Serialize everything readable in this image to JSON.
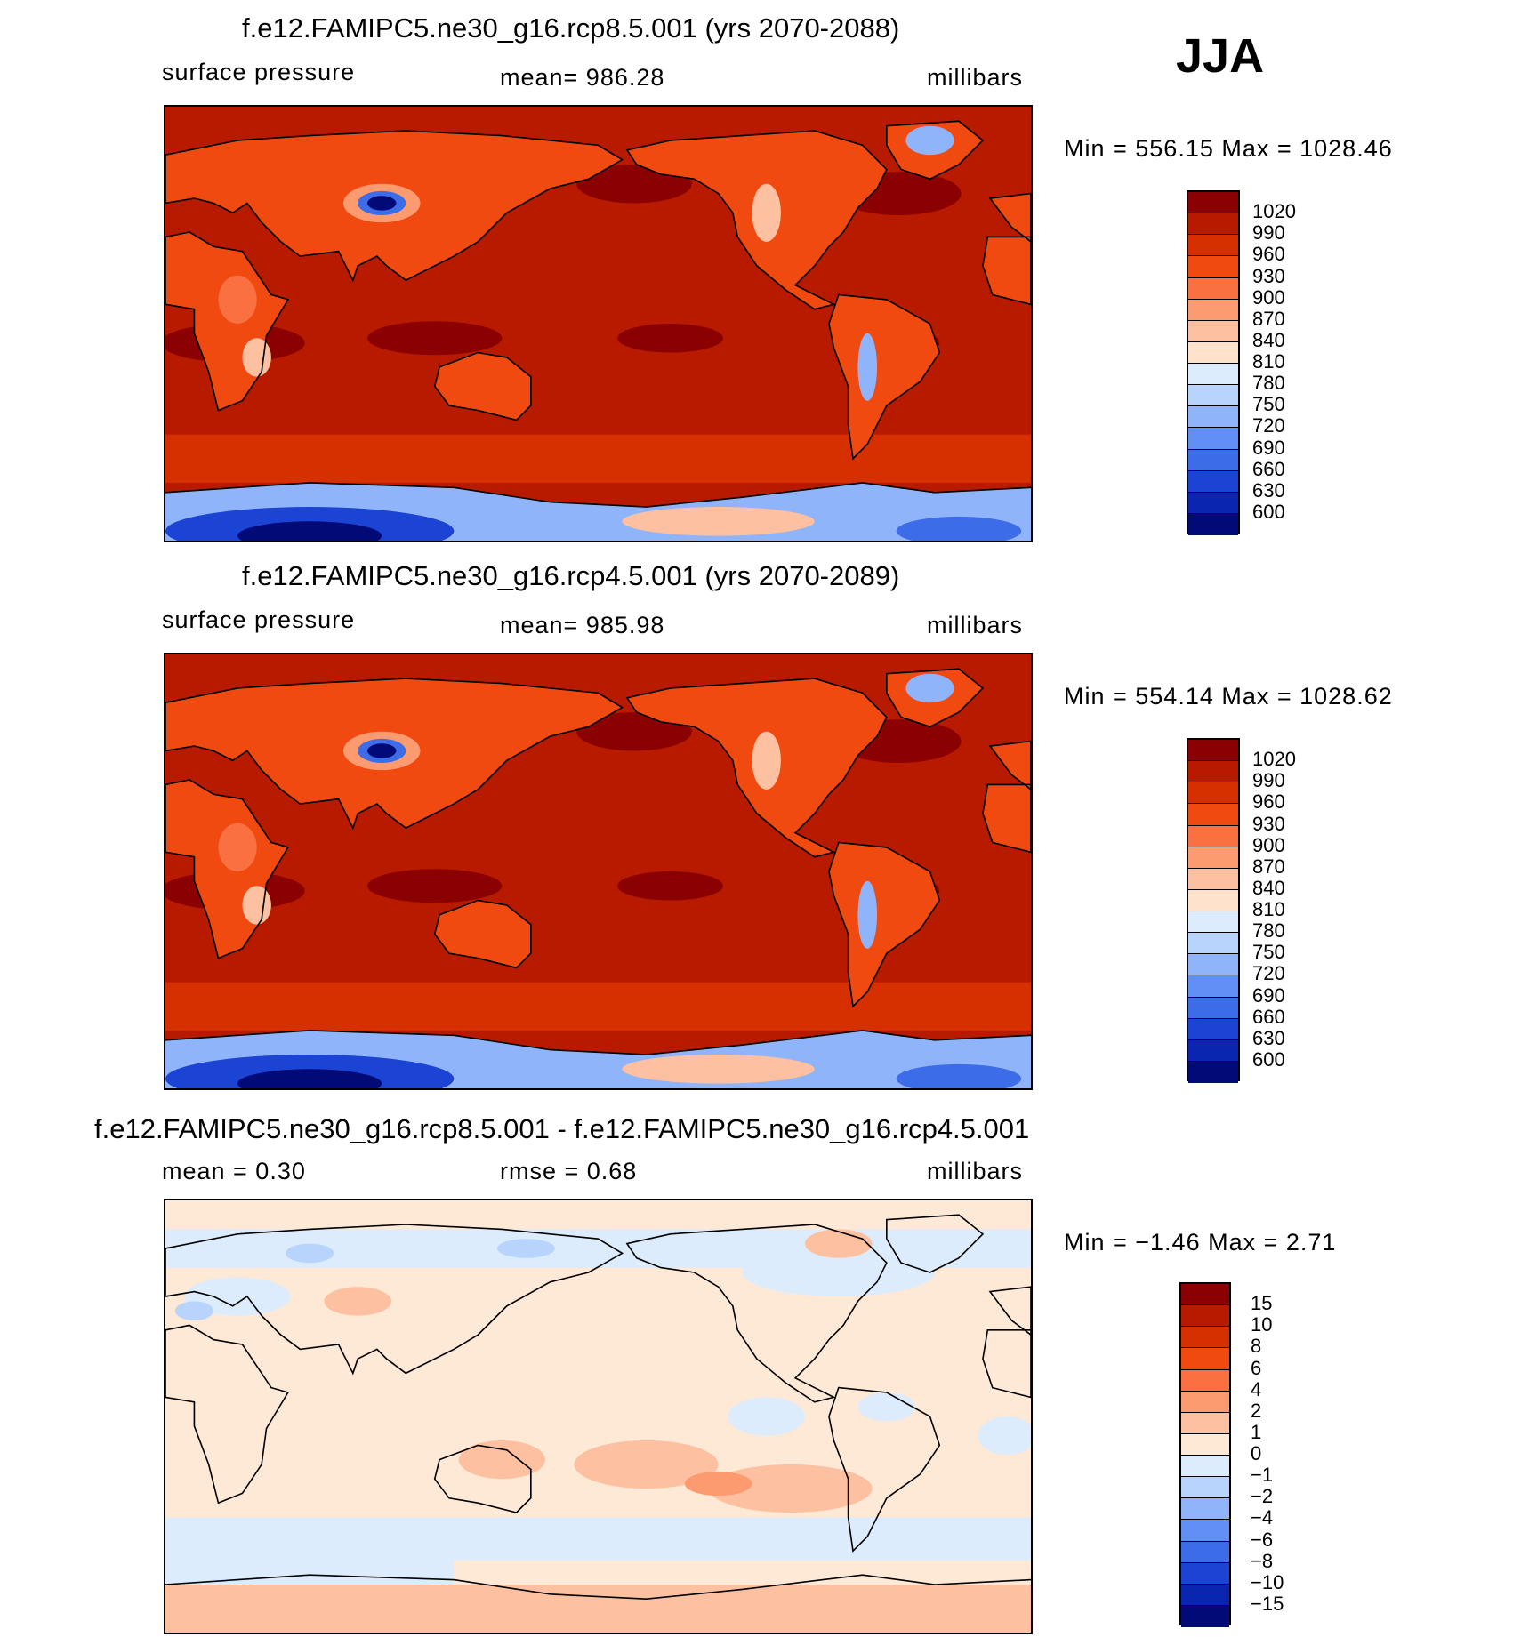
{
  "season": "JJA",
  "panels": [
    {
      "title": "f.e12.FAMIPC5.ne30_g16.rcp8.5.001 (yrs 2070-2088)",
      "left": "surface pressure",
      "center": "mean=  986.28",
      "right": "millibars",
      "minmax": "Min  =  556.15  Max  =  1028.46",
      "levels": [
        "1020",
        "990",
        "960",
        "930",
        "900",
        "870",
        "840",
        "810",
        "780",
        "750",
        "720",
        "690",
        "660",
        "630",
        "600"
      ],
      "colors": [
        "#8b0000",
        "#b81a00",
        "#d63000",
        "#f04a10",
        "#fa7040",
        "#fc9a70",
        "#fdc0a0",
        "#fee2cc",
        "#dcecfc",
        "#b8d4fc",
        "#90b4fa",
        "#6090f4",
        "#3c6ce8",
        "#1c44d4",
        "#0a26b0",
        "#020a78"
      ],
      "map_type": "full"
    },
    {
      "title": "f.e12.FAMIPC5.ne30_g16.rcp4.5.001 (yrs 2070-2089)",
      "left": "surface pressure",
      "center": "mean=  985.98",
      "right": "millibars",
      "minmax": "Min  =  554.14  Max  =  1028.62",
      "levels": [
        "1020",
        "990",
        "960",
        "930",
        "900",
        "870",
        "840",
        "810",
        "780",
        "750",
        "720",
        "690",
        "660",
        "630",
        "600"
      ],
      "colors": [
        "#8b0000",
        "#b81a00",
        "#d63000",
        "#f04a10",
        "#fa7040",
        "#fc9a70",
        "#fdc0a0",
        "#fee2cc",
        "#dcecfc",
        "#b8d4fc",
        "#90b4fa",
        "#6090f4",
        "#3c6ce8",
        "#1c44d4",
        "#0a26b0",
        "#020a78"
      ],
      "map_type": "full"
    },
    {
      "title": "f.e12.FAMIPC5.ne30_g16.rcp8.5.001 - f.e12.FAMIPC5.ne30_g16.rcp4.5.001",
      "left": "mean =     0.30",
      "center": "rmse =     0.68",
      "right": "millibars",
      "minmax": "Min  =    −1.46  Max  =     2.71",
      "levels": [
        "15",
        "10",
        "8",
        "6",
        "4",
        "2",
        "1",
        "0",
        "−1",
        "−2",
        "−4",
        "−6",
        "−8",
        "−10",
        "−15"
      ],
      "colors": [
        "#8b0000",
        "#b81a00",
        "#d63000",
        "#f04a10",
        "#fa7040",
        "#fc9a70",
        "#fdc0a0",
        "#fee8d6",
        "#dcecfc",
        "#b8d4fc",
        "#90b4fa",
        "#6090f4",
        "#3c6ce8",
        "#1c44d4",
        "#0a26b0",
        "#020a78"
      ],
      "map_type": "diff"
    }
  ]
}
